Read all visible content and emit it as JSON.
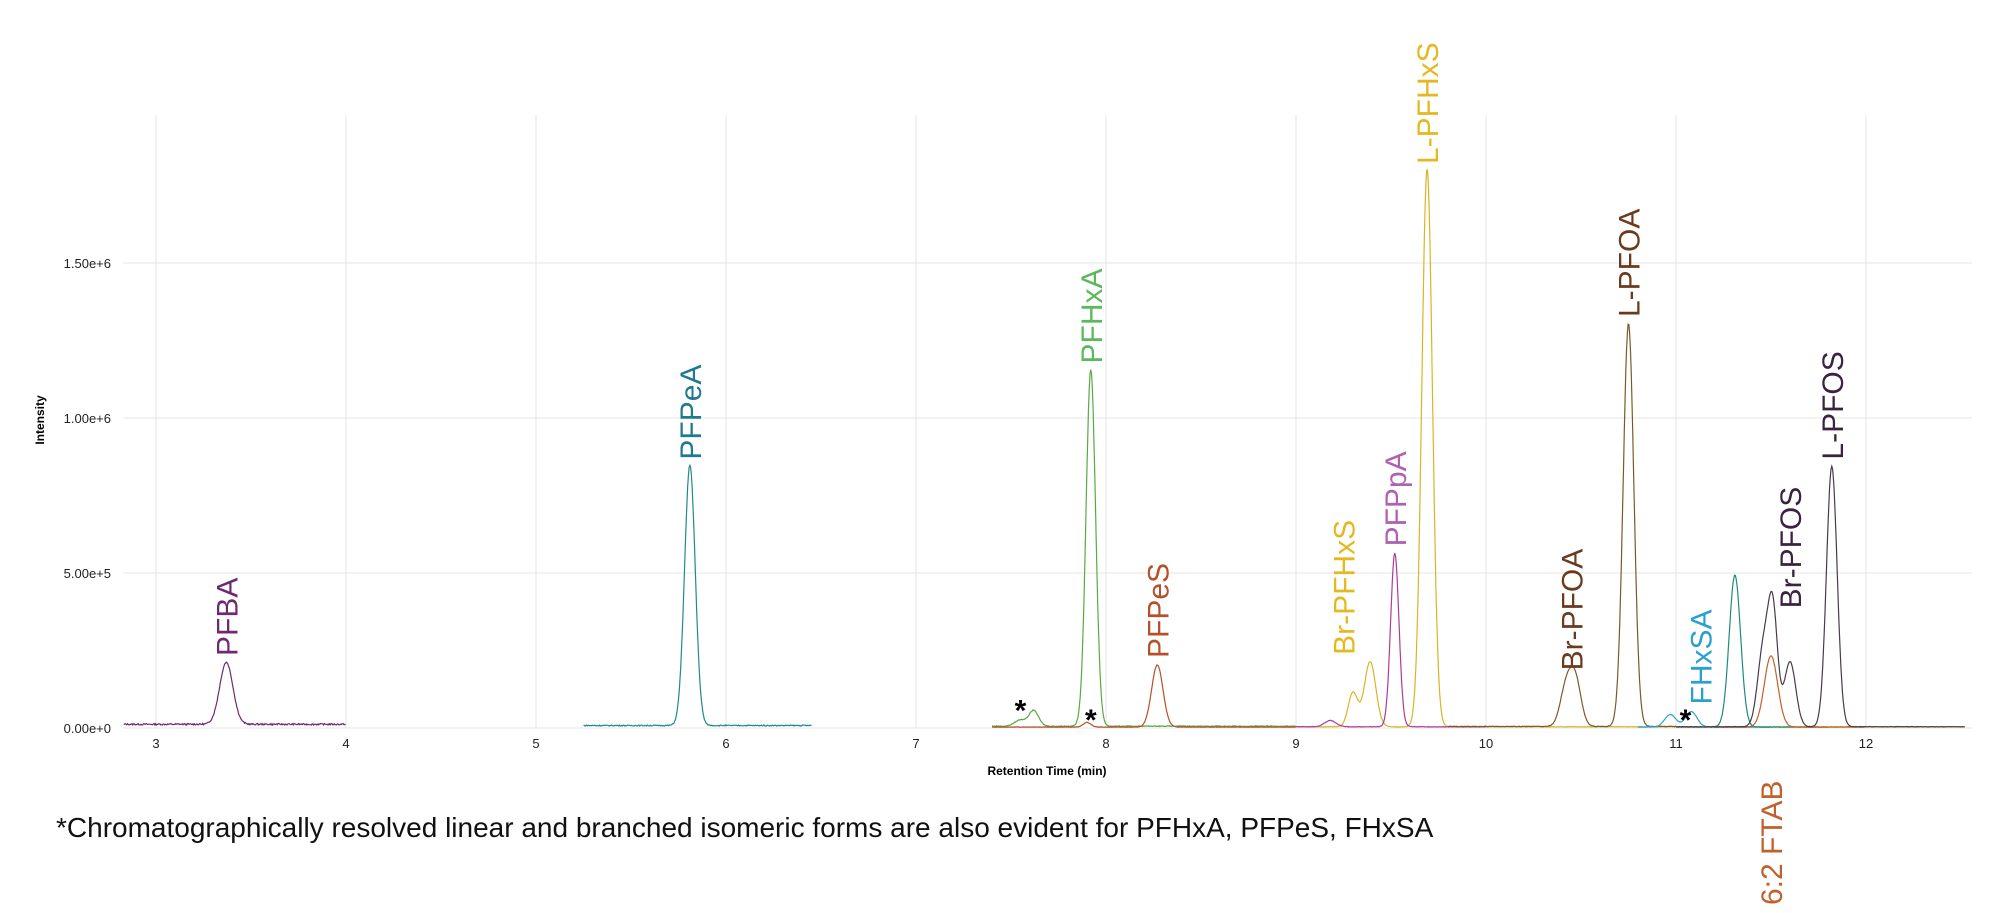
{
  "chart_data": {
    "type": "line",
    "xlabel": "Retention Time (min)",
    "ylabel": "Intensity",
    "xlim": [
      2.83,
      12.52
    ],
    "ylim": [
      0,
      1990000
    ],
    "grid": true,
    "x_ticks": [
      3,
      4,
      5,
      6,
      7,
      8,
      9,
      10,
      11,
      12
    ],
    "x_tick_labels": [
      "3",
      "4",
      "5",
      "6",
      "7",
      "8",
      "9",
      "10",
      "11",
      "12"
    ],
    "y_ticks": [
      0,
      500000,
      1000000,
      1500000
    ],
    "y_tick_labels": [
      "0.00e+0",
      "5.00e+5",
      "1.00e+6",
      "1.50e+6"
    ],
    "series": [
      {
        "color": "#6e2a6e",
        "range": [
          2.83,
          4.0
        ],
        "baseline": 12000,
        "peaks": [
          [
            3.37,
            200000,
            0.035
          ]
        ]
      },
      {
        "color": "#1f8a8a",
        "range": [
          5.25,
          6.45
        ],
        "baseline": 8000,
        "peaks": [
          [
            5.81,
            840000,
            0.028
          ]
        ]
      },
      {
        "color": "#5aa845",
        "range": [
          7.4,
          9.0
        ],
        "baseline": 6000,
        "peaks": [
          [
            7.55,
            20000,
            0.03
          ],
          [
            7.62,
            50000,
            0.025
          ],
          [
            7.92,
            1150000,
            0.025
          ]
        ]
      },
      {
        "color": "#b5502a",
        "range": [
          7.4,
          9.0
        ],
        "baseline": 3000,
        "peaks": [
          [
            7.9,
            15000,
            0.02
          ],
          [
            8.27,
            200000,
            0.03
          ]
        ]
      },
      {
        "color": "#d9b526",
        "range": [
          9.0,
          12.52
        ],
        "baseline": 4000,
        "peaks": [
          [
            9.3,
            110000,
            0.025
          ],
          [
            9.39,
            210000,
            0.03
          ],
          [
            9.69,
            1800000,
            0.028
          ]
        ]
      },
      {
        "color": "#b03a9a",
        "range": [
          9.0,
          10.0
        ],
        "baseline": 4000,
        "peaks": [
          [
            9.18,
            20000,
            0.03
          ],
          [
            9.52,
            560000,
            0.022
          ]
        ]
      },
      {
        "color": "#7a5a2a",
        "range": [
          9.8,
          11.0
        ],
        "baseline": 5000,
        "peaks": [
          [
            10.42,
            120000,
            0.03
          ],
          [
            10.47,
            150000,
            0.03
          ],
          [
            10.75,
            1300000,
            0.028
          ]
        ]
      },
      {
        "color": "#2aa0d0",
        "range": [
          10.8,
          11.5
        ],
        "baseline": 3000,
        "peaks": [
          [
            10.97,
            40000,
            0.03
          ],
          [
            11.08,
            50000,
            0.03
          ]
        ]
      },
      {
        "color": "#1f8a7a",
        "range": [
          11.0,
          11.8
        ],
        "baseline": 3000,
        "peaks": [
          [
            11.31,
            490000,
            0.03
          ]
        ]
      },
      {
        "color": "#c0602a",
        "range": [
          11.2,
          12.0
        ],
        "baseline": 3000,
        "peaks": [
          [
            11.5,
            230000,
            0.035
          ]
        ]
      },
      {
        "color": "#4a3a4a",
        "range": [
          11.0,
          12.52
        ],
        "baseline": 4000,
        "peaks": [
          [
            11.46,
            250000,
            0.03
          ],
          [
            11.51,
            360000,
            0.025
          ],
          [
            11.6,
            210000,
            0.03
          ],
          [
            11.82,
            840000,
            0.028
          ]
        ]
      }
    ],
    "peak_labels": [
      {
        "text": "PFBA",
        "rt": 3.37,
        "intensity": 200000,
        "color": "#6e2a6e"
      },
      {
        "text": "PFPeA",
        "rt": 5.81,
        "intensity": 840000,
        "color": "#1f7a8f"
      },
      {
        "text": "PFHxA",
        "rt": 7.92,
        "intensity": 1150000,
        "color": "#5cb85c"
      },
      {
        "text": "PFPeS",
        "rt": 8.27,
        "intensity": 200000,
        "color": "#b5502a"
      },
      {
        "text": "Br-PFHxS",
        "rt": 9.25,
        "intensity": 210000,
        "color": "#e6b820"
      },
      {
        "text": "PFPpA",
        "rt": 9.52,
        "intensity": 560000,
        "color": "#b060b0"
      },
      {
        "text": "L-PFHxS",
        "rt": 9.69,
        "intensity": 1800000,
        "color": "#e6b820"
      },
      {
        "text": "Br-PFOA",
        "rt": 10.45,
        "intensity": 160000,
        "color": "#6b3a1e"
      },
      {
        "text": "L-PFOA",
        "rt": 10.75,
        "intensity": 1300000,
        "color": "#6b3a1e"
      },
      {
        "text": "FHxSA",
        "rt": 11.13,
        "intensity": 50000,
        "color": "#2aa0d0"
      },
      {
        "text": "Br-PFOS",
        "rt": 11.6,
        "intensity": 360000,
        "color": "#3a2240"
      },
      {
        "text": "L-PFOS",
        "rt": 11.82,
        "intensity": 840000,
        "color": "#3a2240"
      },
      {
        "text": "6:2 FTAB",
        "rt": 11.5,
        "intensity": 0,
        "color": "#c0602a",
        "position": "below"
      }
    ],
    "annotations": [
      {
        "text": "*",
        "rt": 7.55,
        "intensity": 50000
      },
      {
        "text": "*",
        "rt": 7.92,
        "intensity": 20000
      },
      {
        "text": "*",
        "rt": 11.05,
        "intensity": 20000
      }
    ]
  },
  "caption": "*Chromatographically resolved linear and branched isomeric forms are also evident for PFHxA, PFPeS, FHxSA"
}
